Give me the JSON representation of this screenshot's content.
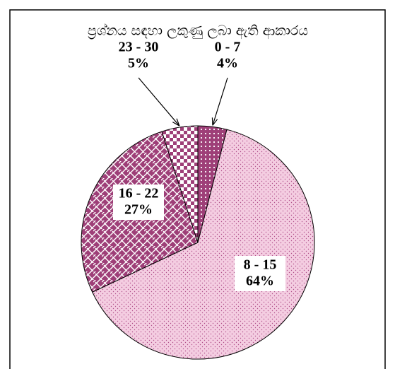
{
  "chart_data": {
    "type": "pie",
    "title": "ප්‍රශ්නය සඳහා ලකුණු ලබා ඇති ආකාරය",
    "categories": [
      "0 - 7",
      "8 - 15",
      "16 - 22",
      "23 - 30"
    ],
    "values": [
      4,
      64,
      27,
      5
    ],
    "value_labels": [
      "4%",
      "64%",
      "27%",
      "5%"
    ],
    "colors": [
      "#9e3f78",
      "#f4cde1",
      "#9e3f78",
      "#9e3f78"
    ]
  }
}
